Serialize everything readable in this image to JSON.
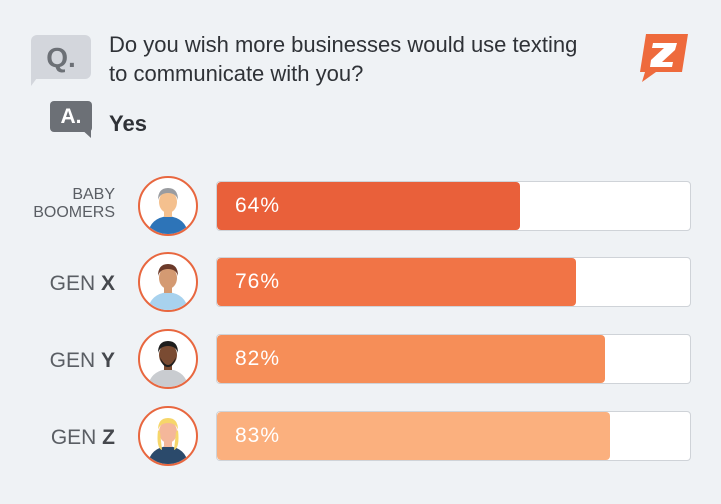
{
  "question_badge": "Q.",
  "answer_badge": "A.",
  "question": "Do you wish more businesses would use texting to communicate with you?",
  "answer": "Yes",
  "logo_text": "Z",
  "chart_data": {
    "type": "bar",
    "orientation": "horizontal",
    "title": "Do you wish more businesses would use texting to communicate with you?",
    "categories": [
      "BABY BOOMERS",
      "GEN X",
      "GEN Y",
      "GEN Z"
    ],
    "values": [
      64,
      76,
      82,
      83
    ],
    "labels": [
      "64%",
      "76%",
      "82%",
      "83%"
    ],
    "xlim": [
      0,
      100
    ],
    "colors": [
      "#e9603a",
      "#f17446",
      "#f68e58",
      "#fbb07e"
    ]
  },
  "rows": [
    {
      "line1": "BABY",
      "line2": "BOOMERS"
    },
    {
      "prefix": "GEN ",
      "bold": "X"
    },
    {
      "prefix": "GEN ",
      "bold": "Y"
    },
    {
      "prefix": "GEN ",
      "bold": "Z"
    }
  ]
}
